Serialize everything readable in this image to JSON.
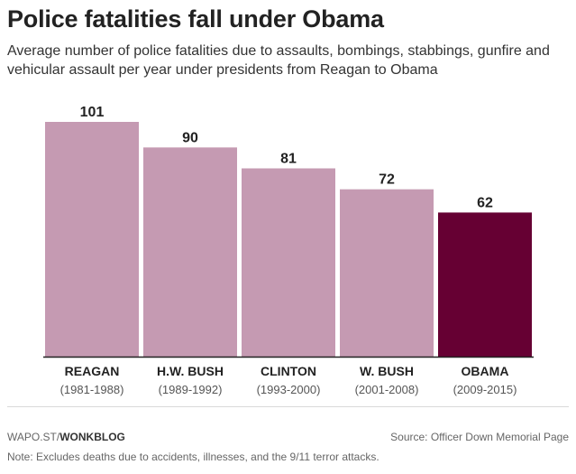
{
  "chart_data": {
    "type": "bar",
    "title": "Police fatalities fall under Obama",
    "subtitle": "Average number of police fatalities due to assaults, bombings, stabbings, gunfire and vehicular assault per year under presidents from Reagan to Obama",
    "categories": [
      "REAGAN",
      "H.W. BUSH",
      "CLINTON",
      "W. BUSH",
      "OBAMA"
    ],
    "periods": [
      "(1981-1988)",
      "(1989-1992)",
      "(1993-2000)",
      "(2001-2008)",
      "(2009-2015)"
    ],
    "values": [
      101,
      90,
      81,
      72,
      62
    ],
    "ylim": [
      0,
      101
    ],
    "xlabel": "",
    "ylabel": "",
    "grid": false,
    "bar_colors": [
      "#c59ab2",
      "#c59ab2",
      "#c59ab2",
      "#c59ab2",
      "#660033"
    ]
  },
  "footer": {
    "credit_prefix": "WAPO.ST/",
    "credit_brand": "WONKBLOG",
    "source": "Source: Officer Down Memorial Page",
    "note": "Note: Excludes deaths due to accidents, illnesses, and the 9/11 terror attacks."
  }
}
